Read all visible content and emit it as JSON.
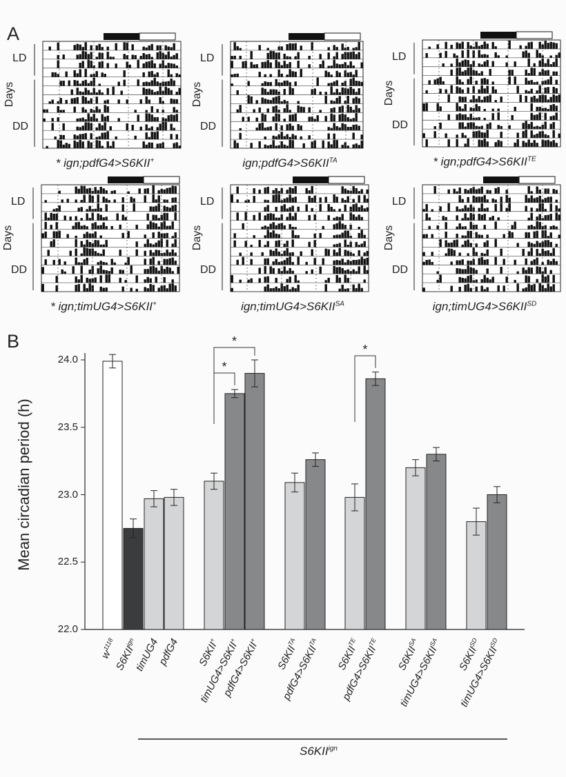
{
  "panel_a": {
    "letter": "A",
    "row_labels": {
      "ld": "LD",
      "days": "Days",
      "dd": "DD"
    },
    "actograms": [
      {
        "prefix": "* ",
        "base": "ign;pdfG4>S6KII",
        "sup": "+"
      },
      {
        "prefix": "",
        "base": "ign;pdfG4>S6KII",
        "sup": "TA"
      },
      {
        "prefix": "* ",
        "base": "ign;pdfG4>S6KII",
        "sup": "TE"
      },
      {
        "prefix": "* ",
        "base": "ign;timUG4>S6KII",
        "sup": "+"
      },
      {
        "prefix": "",
        "base": "ign;timUG4>S6KII",
        "sup": "SA"
      },
      {
        "prefix": "",
        "base": "ign;timUG4>S6KII",
        "sup": "SD"
      }
    ]
  },
  "chart_data": {
    "type": "bar",
    "panel_letter": "B",
    "ylabel": "Mean circadian period (h)",
    "ylim": [
      22.0,
      24.0
    ],
    "yticks": [
      "22.0",
      "22.5",
      "23.0",
      "23.5",
      "24.0"
    ],
    "categories": [
      {
        "base": "w",
        "sup": "1118",
        "value": 23.99,
        "error": 0.05,
        "fill": "#ffffff"
      },
      {
        "base": "S6KII",
        "sup": "ign",
        "value": 22.75,
        "error": 0.07,
        "fill": "#3b3c3e"
      },
      {
        "base": "timUG4",
        "sup": "",
        "value": 22.97,
        "error": 0.06,
        "fill": "#d4d5d7"
      },
      {
        "base": "pdfG4",
        "sup": "",
        "value": 22.98,
        "error": 0.06,
        "fill": "#d4d5d7"
      },
      {
        "base": "S6KII",
        "sup": "+",
        "value": 23.1,
        "error": 0.06,
        "fill": "#d4d5d7"
      },
      {
        "base": "timUG4>S6KII",
        "sup": "+",
        "value": 23.75,
        "error": 0.03,
        "fill": "#87888a"
      },
      {
        "base": "pdfG4>S6KII",
        "sup": "+",
        "value": 23.9,
        "error": 0.1,
        "fill": "#87888a"
      },
      {
        "base": "S6KII",
        "sup": "TA",
        "value": 23.09,
        "error": 0.07,
        "fill": "#d4d5d7"
      },
      {
        "base": "pdfG4>S6KII",
        "sup": "TA",
        "value": 23.26,
        "error": 0.05,
        "fill": "#87888a"
      },
      {
        "base": "S6KII",
        "sup": "TE",
        "value": 22.98,
        "error": 0.1,
        "fill": "#d4d5d7"
      },
      {
        "base": "pdfG4>S6KII",
        "sup": "TE",
        "value": 23.86,
        "error": 0.05,
        "fill": "#87888a"
      },
      {
        "base": "S6KII",
        "sup": "SA",
        "value": 23.2,
        "error": 0.06,
        "fill": "#d4d5d7"
      },
      {
        "base": "timUG4>S6KII",
        "sup": "SA",
        "value": 23.3,
        "error": 0.05,
        "fill": "#87888a"
      },
      {
        "base": "S6KII",
        "sup": "SD",
        "value": 22.8,
        "error": 0.1,
        "fill": "#d4d5d7"
      },
      {
        "base": "timUG4>S6KII",
        "sup": "SD",
        "value": 23.0,
        "error": 0.06,
        "fill": "#87888a"
      }
    ],
    "significance": [
      {
        "from": 4,
        "to": 5,
        "label": "*"
      },
      {
        "from": 4,
        "to": 6,
        "label": "*"
      },
      {
        "from": 9,
        "to": 10,
        "label": "*"
      }
    ],
    "group_label": {
      "base": "S6KII",
      "sup": "ign"
    }
  }
}
